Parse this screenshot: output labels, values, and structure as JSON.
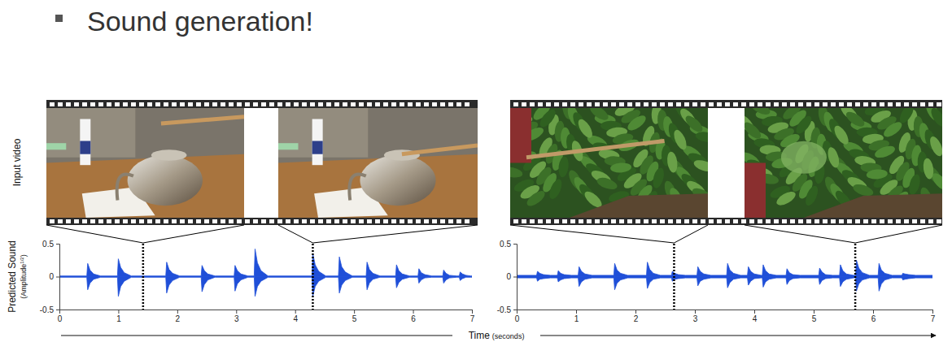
{
  "slide": {
    "bullet": "Sound generation!",
    "row_label": "Input video",
    "x_label": [
      "Time",
      "(seconds)"
    ]
  },
  "chart_data": [
    {
      "type": "area",
      "y_label": "Predicted Sound",
      "y_unit": [
        "(Amplitude",
        "1/2",
        ")"
      ],
      "xlim": [
        0,
        7
      ],
      "xticks": [
        0,
        1,
        2,
        3,
        4,
        5,
        6,
        7
      ],
      "ylim": [
        -0.5,
        0.5
      ],
      "yticks": [
        -0.5,
        0,
        0.5
      ],
      "frame_times": [
        1.42,
        4.3
      ],
      "x": [
        0,
        0.465,
        0.48,
        0.52,
        0.58,
        0.7,
        0.985,
        1,
        1.04,
        1.1,
        1.22,
        1.805,
        1.82,
        1.86,
        1.92,
        2.04,
        2.405,
        2.42,
        2.46,
        2.52,
        2.64,
        2.965,
        2.98,
        3.02,
        3.08,
        3.2,
        3.305,
        3.32,
        3.36,
        3.42,
        3.54,
        4.285,
        4.3,
        4.34,
        4.4,
        4.52,
        4.735,
        4.75,
        4.79,
        4.85,
        4.97,
        5.205,
        5.22,
        5.26,
        5.32,
        5.44,
        5.705,
        5.72,
        5.76,
        5.82,
        5.94,
        6.085,
        6.1,
        6.14,
        6.2,
        6.32,
        6.505,
        6.52,
        6.56,
        6.62,
        6.74,
        6.785,
        6.8,
        6.84,
        6.9,
        6.98,
        7
      ],
      "series": [
        {
          "color": "#1f4fd8",
          "values": [
            0.01,
            0.01,
            0.2,
            0.1,
            0.04,
            0.01,
            0.01,
            0.27,
            0.14,
            0.06,
            0.01,
            0.01,
            0.22,
            0.11,
            0.05,
            0.01,
            0.01,
            0.17,
            0.09,
            0.04,
            0.01,
            0.01,
            0.17,
            0.09,
            0.04,
            0.01,
            0.01,
            0.42,
            0.21,
            0.09,
            0.01,
            0.01,
            0.35,
            0.18,
            0.08,
            0.01,
            0.01,
            0.3,
            0.15,
            0.07,
            0.01,
            0.01,
            0.22,
            0.11,
            0.05,
            0.01,
            0.01,
            0.18,
            0.09,
            0.04,
            0.01,
            0.01,
            0.12,
            0.06,
            0.03,
            0.01,
            0.01,
            0.1,
            0.05,
            0.02,
            0.01,
            0.01,
            0.07,
            0.04,
            0.02,
            0.01,
            0.01
          ]
        },
        {
          "color": "#1f4fd8",
          "values": [
            -0.01,
            -0.01,
            -0.2,
            -0.1,
            -0.04,
            -0.01,
            -0.01,
            -0.3,
            -0.15,
            -0.07,
            -0.01,
            -0.01,
            -0.25,
            -0.13,
            -0.06,
            -0.01,
            -0.01,
            -0.23,
            -0.12,
            -0.05,
            -0.01,
            -0.01,
            -0.22,
            -0.11,
            -0.05,
            -0.01,
            -0.01,
            -0.3,
            -0.15,
            -0.07,
            -0.01,
            -0.01,
            -0.3,
            -0.15,
            -0.07,
            -0.01,
            -0.01,
            -0.25,
            -0.13,
            -0.06,
            -0.01,
            -0.01,
            -0.2,
            -0.1,
            -0.04,
            -0.01,
            -0.01,
            -0.17,
            -0.09,
            -0.04,
            -0.01,
            -0.01,
            -0.1,
            -0.05,
            -0.02,
            -0.01,
            -0.01,
            -0.1,
            -0.05,
            -0.02,
            -0.01,
            -0.01,
            -0.06,
            -0.03,
            -0.01,
            -0.01,
            -0.01
          ]
        }
      ]
    },
    {
      "type": "area",
      "xlim": [
        0,
        7
      ],
      "xticks": [
        0,
        1,
        2,
        3,
        4,
        5,
        6,
        7
      ],
      "ylim": [
        -0.5,
        0.5
      ],
      "yticks": [
        -0.5,
        0,
        0.5
      ],
      "frame_times": [
        2.65,
        5.7
      ],
      "x": [
        0,
        0.335,
        0.35,
        0.39,
        0.45,
        0.57,
        0.685,
        0.7,
        0.74,
        0.8,
        0.92,
        1.035,
        1.05,
        1.09,
        1.15,
        1.27,
        1.635,
        1.65,
        1.69,
        1.75,
        1.87,
        2.185,
        2.2,
        2.24,
        2.3,
        2.42,
        2.605,
        2.62,
        2.66,
        2.72,
        2.84,
        3.035,
        3.05,
        3.09,
        3.15,
        3.27,
        3.535,
        3.55,
        3.59,
        3.65,
        3.77,
        3.885,
        3.9,
        3.94,
        4,
        4.12,
        4.135,
        4.15,
        4.19,
        4.25,
        4.37,
        4.535,
        4.55,
        4.59,
        4.65,
        4.77,
        5.085,
        5.1,
        5.14,
        5.2,
        5.32,
        5.435,
        5.45,
        5.49,
        5.55,
        5.67,
        5.705,
        5.72,
        5.76,
        5.82,
        5.94,
        6.085,
        6.1,
        6.14,
        6.2,
        6.32,
        6.485,
        6.5,
        6.54,
        6.6,
        6.72,
        7
      ],
      "series": [
        {
          "color": "#1f4fd8",
          "values": [
            0.02,
            0.02,
            0.08,
            0.05,
            0.03,
            0.02,
            0.02,
            0.09,
            0.05,
            0.03,
            0.02,
            0.02,
            0.15,
            0.08,
            0.04,
            0.02,
            0.02,
            0.2,
            0.1,
            0.05,
            0.02,
            0.02,
            0.22,
            0.11,
            0.05,
            0.02,
            0.02,
            0.08,
            0.05,
            0.03,
            0.02,
            0.02,
            0.15,
            0.08,
            0.04,
            0.02,
            0.02,
            0.2,
            0.1,
            0.05,
            0.02,
            0.02,
            0.15,
            0.08,
            0.04,
            0.02,
            0.02,
            0.18,
            0.09,
            0.04,
            0.02,
            0.02,
            0.12,
            0.06,
            0.03,
            0.02,
            0.02,
            0.13,
            0.07,
            0.03,
            0.02,
            0.02,
            0.18,
            0.09,
            0.04,
            0.02,
            0.02,
            0.25,
            0.13,
            0.06,
            0.02,
            0.02,
            0.2,
            0.1,
            0.05,
            0.02,
            0.02,
            0.05,
            0.04,
            0.03,
            0.02,
            0.02
          ]
        },
        {
          "color": "#1f4fd8",
          "values": [
            -0.02,
            -0.02,
            -0.07,
            -0.04,
            -0.03,
            -0.02,
            -0.02,
            -0.08,
            -0.05,
            -0.03,
            -0.02,
            -0.02,
            -0.15,
            -0.08,
            -0.04,
            -0.02,
            -0.02,
            -0.2,
            -0.1,
            -0.05,
            -0.02,
            -0.02,
            -0.18,
            -0.09,
            -0.04,
            -0.02,
            -0.02,
            -0.07,
            -0.04,
            -0.03,
            -0.02,
            -0.02,
            -0.14,
            -0.07,
            -0.04,
            -0.02,
            -0.02,
            -0.17,
            -0.09,
            -0.04,
            -0.02,
            -0.02,
            -0.13,
            -0.07,
            -0.03,
            -0.02,
            -0.02,
            -0.16,
            -0.08,
            -0.04,
            -0.02,
            -0.02,
            -0.12,
            -0.06,
            -0.03,
            -0.02,
            -0.02,
            -0.12,
            -0.06,
            -0.03,
            -0.02,
            -0.02,
            -0.15,
            -0.08,
            -0.04,
            -0.02,
            -0.02,
            -0.22,
            -0.11,
            -0.05,
            -0.02,
            -0.02,
            -0.22,
            -0.11,
            -0.05,
            -0.02,
            -0.02,
            -0.05,
            -0.04,
            -0.03,
            -0.02,
            -0.02
          ]
        }
      ]
    }
  ]
}
